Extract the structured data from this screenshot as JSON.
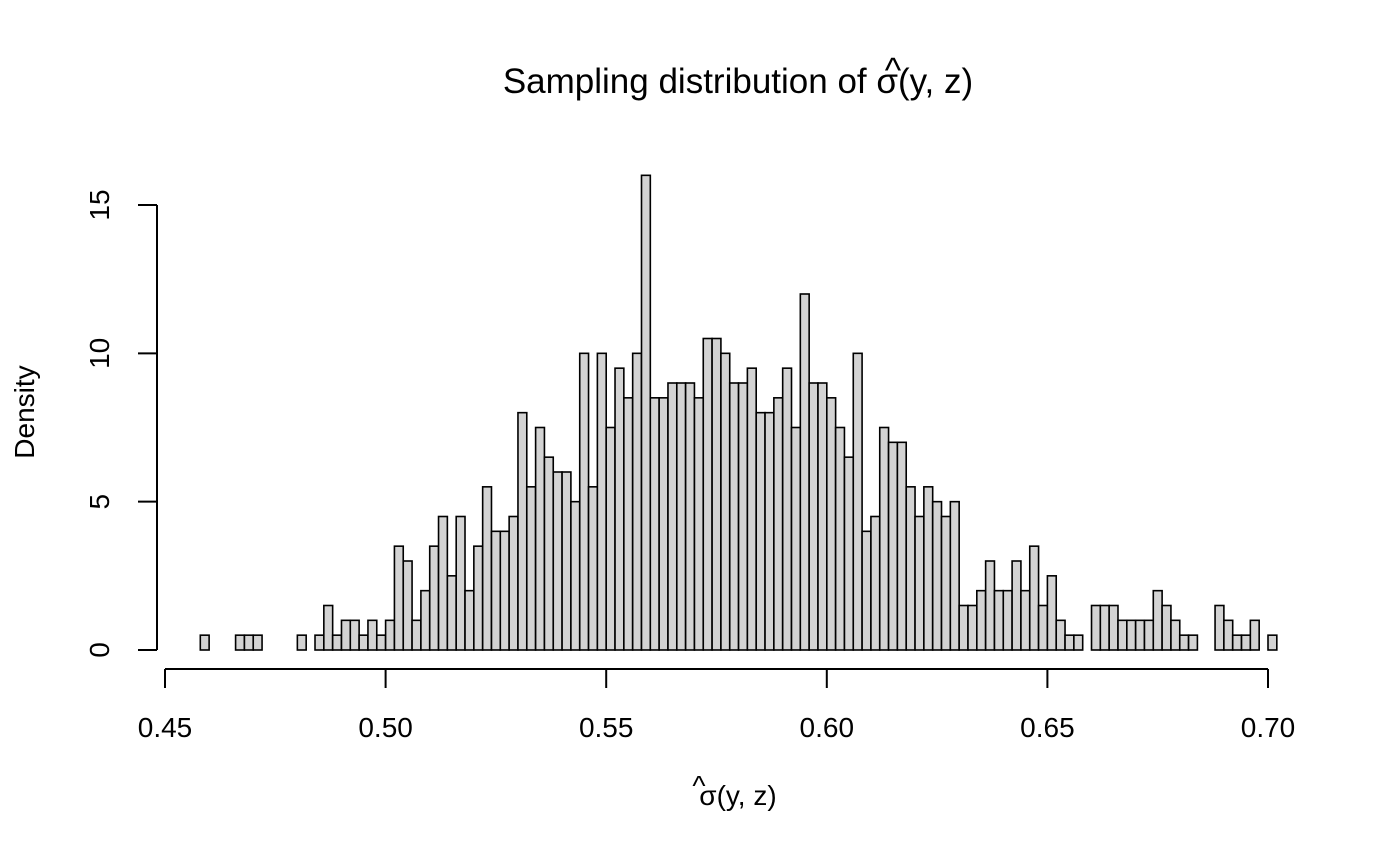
{
  "chart_data": {
    "type": "bar",
    "title": "Sampling distribution of σ̂(y, z)",
    "title_parts": {
      "prefix": "Sampling distribution of ",
      "symbol": "σ",
      "hat": "^",
      "args": "(y, z)"
    },
    "xlabel": "σ̂(y, z)",
    "xlabel_parts": {
      "symbol": "σ",
      "hat": "^",
      "args": "(y, z)"
    },
    "ylabel": "Density",
    "xlim": [
      0.45,
      0.7
    ],
    "ylim": [
      0,
      16
    ],
    "x_ticks": [
      "0.45",
      "0.50",
      "0.55",
      "0.60",
      "0.65",
      "0.70"
    ],
    "y_ticks": [
      "0",
      "5",
      "10",
      "15"
    ],
    "grid": false,
    "bin_start": 0.458,
    "bin_width": 0.002,
    "values": [
      0.5,
      0,
      0,
      0,
      0.5,
      0.5,
      0.5,
      0,
      0,
      0,
      0,
      0.5,
      0,
      0.5,
      1.5,
      0.5,
      1,
      1,
      0.5,
      1,
      0.5,
      1,
      3.5,
      3,
      1,
      2,
      3.5,
      4.5,
      2.5,
      4.5,
      2,
      3.5,
      5.5,
      4,
      4,
      4.5,
      8,
      5.5,
      7.5,
      6.5,
      6,
      6,
      5,
      10,
      5.5,
      10,
      7.5,
      9.5,
      8.5,
      10,
      16,
      8.5,
      8.5,
      9,
      9,
      9,
      8.5,
      10.5,
      10.5,
      10,
      9,
      9,
      9.5,
      8,
      8,
      8.5,
      9.5,
      7.5,
      12,
      9,
      9,
      8.5,
      7.5,
      6.5,
      10,
      4,
      4.5,
      7.5,
      7,
      7,
      5.5,
      4.5,
      5.5,
      5,
      4.5,
      5,
      1.5,
      1.5,
      2,
      3,
      2,
      2,
      3,
      2,
      3.5,
      1.5,
      2.5,
      1,
      0.5,
      0.5,
      0,
      1.5,
      1.5,
      1.5,
      1,
      1,
      1,
      1,
      2,
      1.5,
      1,
      0.5,
      0.5,
      0,
      0,
      1.5,
      1,
      0.5,
      0.5,
      1,
      0,
      0.5
    ],
    "colors": {
      "bar_fill": "#d3d3d3",
      "bar_stroke": "#000000"
    }
  }
}
